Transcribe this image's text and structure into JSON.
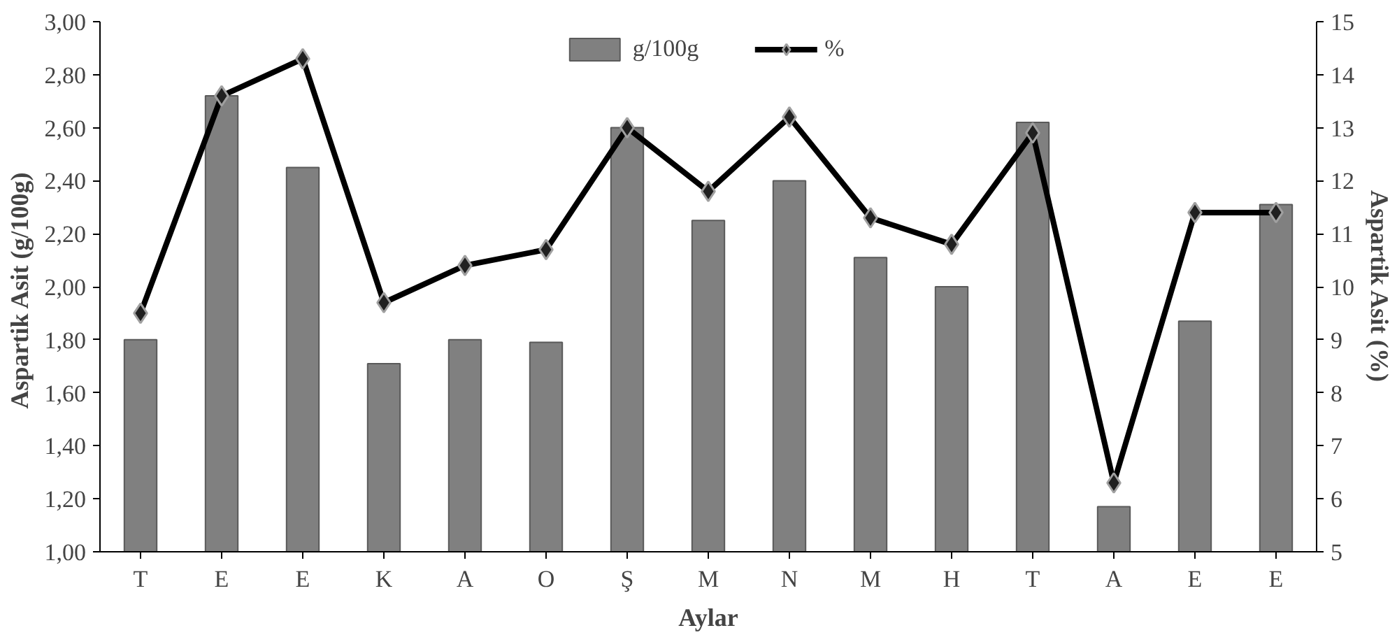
{
  "chart_data": {
    "type": "bar",
    "xlabel": "Aylar",
    "ylabel": "Aspartik Asit  (g/100g)",
    "y2label": "Aspartik Asit (%)",
    "categories": [
      "T",
      "E",
      "E",
      "K",
      "A",
      "O",
      "Ş",
      "M",
      "N",
      "M",
      "H",
      "T",
      "A",
      "E",
      "E"
    ],
    "series": [
      {
        "name": "g/100g",
        "color": "#808080",
        "values": [
          1.8,
          2.72,
          2.45,
          1.71,
          1.8,
          1.79,
          2.6,
          2.25,
          2.4,
          2.11,
          2.0,
          2.62,
          1.17,
          1.87,
          2.31
        ]
      },
      {
        "name": "%",
        "type": "line",
        "axis": "y2",
        "color": "#000000",
        "marker": "diamond",
        "values": [
          9.5,
          13.6,
          14.3,
          9.7,
          10.4,
          10.7,
          13.0,
          11.8,
          13.2,
          11.3,
          10.8,
          12.9,
          6.3,
          11.4,
          11.4
        ]
      }
    ],
    "ylim": [
      1.0,
      3.0
    ],
    "yticks": [
      {
        "value": 1.0,
        "label": "1,00"
      },
      {
        "value": 1.2,
        "label": "1,20"
      },
      {
        "value": 1.4,
        "label": "1,40"
      },
      {
        "value": 1.6,
        "label": "1,60"
      },
      {
        "value": 1.8,
        "label": "1,80"
      },
      {
        "value": 2.0,
        "label": "2,00"
      },
      {
        "value": 2.2,
        "label": "2,20"
      },
      {
        "value": 2.4,
        "label": "2,40"
      },
      {
        "value": 2.6,
        "label": "2,60"
      },
      {
        "value": 2.8,
        "label": "2,80"
      },
      {
        "value": 3.0,
        "label": "3,00"
      }
    ],
    "y2lim": [
      5,
      15
    ],
    "y2ticks": [
      5,
      6,
      7,
      8,
      9,
      10,
      11,
      12,
      13,
      14,
      15
    ],
    "grid": false,
    "legend": "top"
  }
}
